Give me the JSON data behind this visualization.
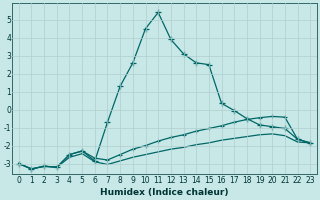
{
  "xlabel": "Humidex (Indice chaleur)",
  "background_color": "#c8e8e8",
  "grid_color": "#b0cece",
  "line_color": "#006666",
  "xlim": [
    -0.5,
    23.5
  ],
  "ylim": [
    -3.6,
    5.9
  ],
  "yticks": [
    -3,
    -2,
    -1,
    0,
    1,
    2,
    3,
    4,
    5
  ],
  "xticks": [
    0,
    1,
    2,
    3,
    4,
    5,
    6,
    7,
    8,
    9,
    10,
    11,
    12,
    13,
    14,
    15,
    16,
    17,
    18,
    19,
    20,
    21,
    22,
    23
  ],
  "line_main_x": [
    0,
    1,
    2,
    3,
    4,
    5,
    6,
    7,
    8,
    9,
    10,
    11,
    12,
    13,
    14,
    15,
    16,
    17,
    18,
    19,
    20,
    21,
    22,
    23
  ],
  "line_main_y": [
    -3.0,
    -3.3,
    -3.15,
    -3.2,
    -2.5,
    -2.3,
    -2.85,
    -0.7,
    1.3,
    2.6,
    4.5,
    5.4,
    3.9,
    3.1,
    2.6,
    2.5,
    0.35,
    -0.05,
    -0.5,
    -0.85,
    -0.95,
    -1.05,
    -1.65,
    -1.85
  ],
  "line_mid_x": [
    0,
    1,
    2,
    3,
    4,
    5,
    6,
    7,
    8,
    9,
    10,
    11,
    12,
    13,
    14,
    15,
    16,
    17,
    18,
    19,
    20,
    21,
    22,
    23
  ],
  "line_mid_y": [
    -3.0,
    -3.3,
    -3.15,
    -3.2,
    -2.5,
    -2.3,
    -2.7,
    -2.8,
    -2.5,
    -2.2,
    -2.0,
    -1.75,
    -1.55,
    -1.4,
    -1.2,
    -1.05,
    -0.9,
    -0.7,
    -0.55,
    -0.45,
    -0.38,
    -0.42,
    -1.65,
    -1.85
  ],
  "line_low_x": [
    0,
    1,
    2,
    3,
    4,
    5,
    6,
    7,
    8,
    9,
    10,
    11,
    12,
    13,
    14,
    15,
    16,
    17,
    18,
    19,
    20,
    21,
    22,
    23
  ],
  "line_low_y": [
    -3.0,
    -3.3,
    -3.15,
    -3.2,
    -2.65,
    -2.45,
    -2.9,
    -3.05,
    -2.85,
    -2.65,
    -2.5,
    -2.35,
    -2.2,
    -2.1,
    -1.95,
    -1.85,
    -1.7,
    -1.6,
    -1.5,
    -1.4,
    -1.35,
    -1.45,
    -1.8,
    -1.85
  ]
}
